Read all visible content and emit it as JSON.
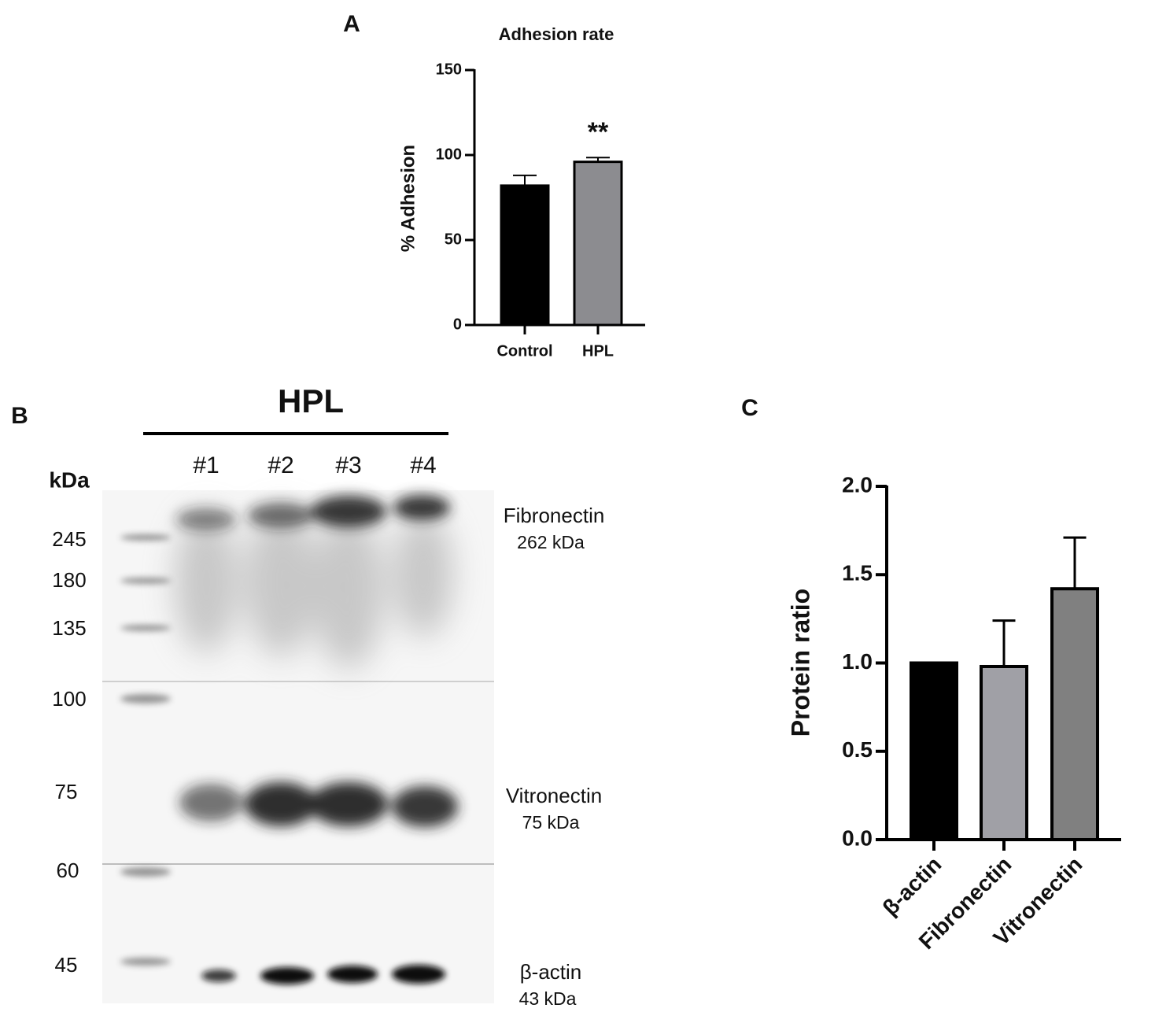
{
  "chart_data": [
    {
      "type": "bar",
      "panel": "A",
      "title": "Adhesion rate",
      "ylabel": "% Adhesion",
      "categories": [
        "Control",
        "HPL"
      ],
      "values": [
        82,
        96
      ],
      "errors": [
        6,
        2.5
      ],
      "colors": [
        "#000000",
        "#8c8c90"
      ],
      "significance": [
        null,
        "**"
      ],
      "ylim": [
        0,
        150
      ],
      "yticks": [
        0,
        50,
        100,
        150
      ]
    },
    {
      "type": "bar",
      "panel": "C",
      "ylabel": "Protein ratio",
      "categories": [
        "β-actin",
        "Fibronectin",
        "Vitronectin"
      ],
      "values": [
        1.0,
        0.98,
        1.42
      ],
      "errors": [
        null,
        0.26,
        0.29
      ],
      "colors": [
        "#000000",
        "#a0a0a6",
        "#808080"
      ],
      "ylim": [
        0,
        2
      ],
      "yticks": [
        {
          "value": 0,
          "label": "0.0"
        },
        0.5,
        {
          "value": 1,
          "label": "1.0"
        },
        1.5,
        {
          "value": 2,
          "label": "2.0"
        }
      ]
    }
  ],
  "blot": {
    "panel": "B",
    "group": "HPL",
    "lanes": [
      "#1",
      "#2",
      "#3",
      "#4"
    ],
    "unit": "kDa",
    "markers": [
      "245",
      "180",
      "135",
      "100",
      "75",
      "60",
      "45"
    ],
    "proteins": [
      {
        "name": "Fibronectin",
        "size": "262 kDa"
      },
      {
        "name": "Vitronectin",
        "size": "75 kDa"
      },
      {
        "name": "β-actin",
        "size": "43 kDa"
      }
    ]
  }
}
